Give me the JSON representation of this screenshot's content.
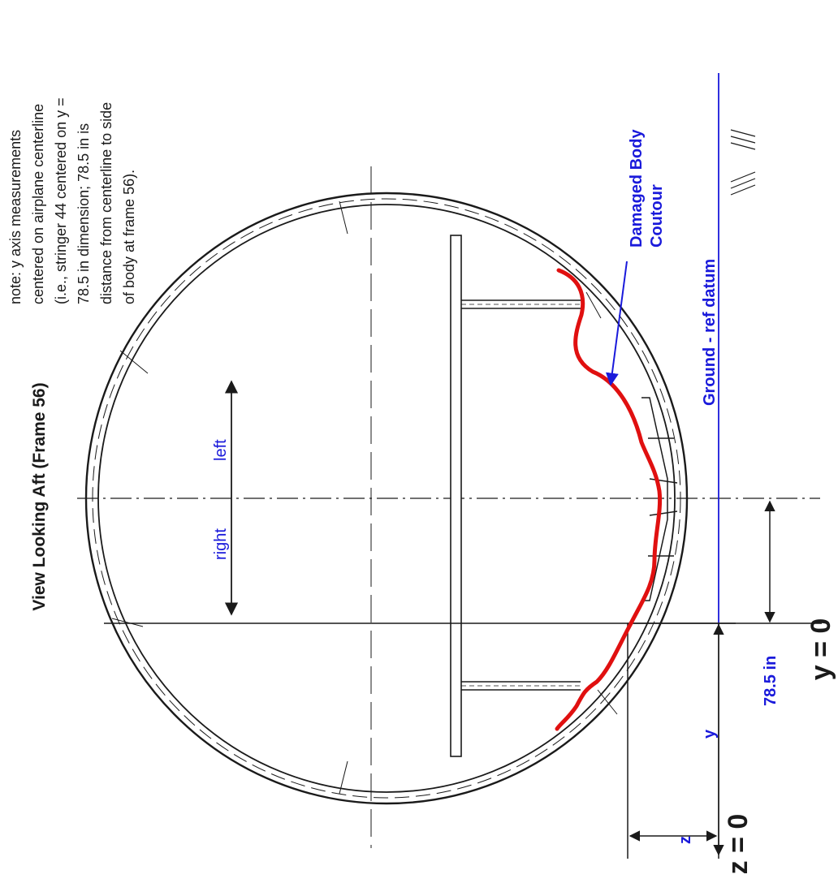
{
  "title": "View Looking Aft  (Frame 56)",
  "note": {
    "lines": [
      "note:  y axis measurements",
      "centered on airplane centerline",
      "(i.e., stringer 44 centered on y =",
      "78.5 in dimension; 78.5 in is",
      "distance from centerline to side",
      "of body at frame 56)."
    ]
  },
  "labels": {
    "damaged_line1": "Damaged Body",
    "damaged_line2": "Coutour",
    "ground": "Ground - ref datum",
    "right": "right",
    "left": "left",
    "dim_785": "78.5 in",
    "dim_y": "y",
    "dim_z": "z",
    "y_zero": "y = 0",
    "z_zero": "z = 0",
    "ground_symbol": "///\\\\\\"
  },
  "colors": {
    "blue": "#1a1adb",
    "red": "#e01010",
    "line": "#1a1a1a"
  }
}
